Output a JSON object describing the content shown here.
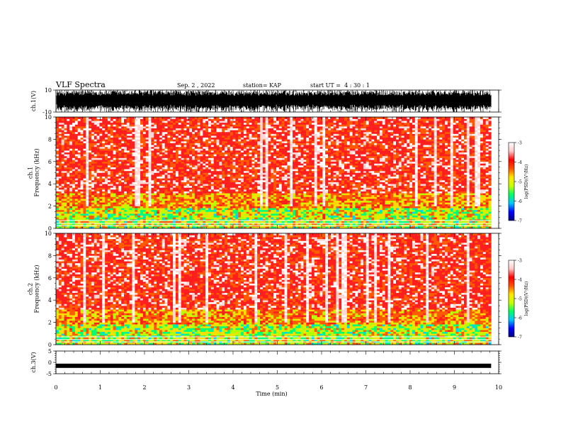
{
  "header": {
    "title": "VLF Spectra",
    "date": "Sep. 2 , 2022",
    "station": "station= KAP",
    "start_ut": "start UT =  4 : 30 : 1"
  },
  "chart_data": [
    {
      "type": "line",
      "name": "ch1-waveform",
      "ylabel": "ch.1(V)",
      "yticks": [
        "10",
        "-10"
      ],
      "ylim": [
        -10,
        10
      ],
      "xlim": [
        0,
        10
      ],
      "data_extent_min": 9.83,
      "description_style": "dense black oscillation near full scale"
    },
    {
      "type": "heatmap",
      "name": "ch1-spectrogram",
      "ylabel": "ch.1\nFrequency (kHz)",
      "ylabel_lines": [
        "ch.1",
        "Frequency (kHz)"
      ],
      "yticks": [
        "0",
        "2",
        "4",
        "6",
        "8",
        "10"
      ],
      "ytick_values": [
        0,
        2,
        4,
        6,
        8,
        10
      ],
      "ylim": [
        0,
        10
      ],
      "xlim": [
        0,
        10
      ],
      "data_extent_min": 9.83,
      "colorbar": {
        "label": "log(PSD)(V²/Hz)",
        "ticks": [
          "-3",
          "-4",
          "-5",
          "-6",
          "-7"
        ],
        "tick_values": [
          -3,
          -4,
          -5,
          -6,
          -7
        ],
        "range": [
          -7,
          -3
        ],
        "colors": [
          "#000080",
          "#0000ff",
          "#00c8ff",
          "#00ff64",
          "#c8ff00",
          "#ffe600",
          "#ff5000",
          "#ff0000",
          "#ffc8c8",
          "#ffffff"
        ]
      }
    },
    {
      "type": "heatmap",
      "name": "ch2-spectrogram",
      "ylabel": "ch.2\nFrequency (kHz)",
      "ylabel_lines": [
        "ch.2",
        "Frequency (kHz)"
      ],
      "yticks": [
        "0",
        "2",
        "4",
        "6",
        "8",
        "10"
      ],
      "ytick_values": [
        0,
        2,
        4,
        6,
        8,
        10
      ],
      "ylim": [
        0,
        10
      ],
      "xlim": [
        0,
        10
      ],
      "data_extent_min": 9.83,
      "colorbar": {
        "label": "log(PSD)(V²/Hz)",
        "ticks": [
          "-3",
          "-4",
          "-5",
          "-6",
          "-7"
        ],
        "tick_values": [
          -3,
          -4,
          -5,
          -6,
          -7
        ],
        "range": [
          -7,
          -3
        ]
      }
    },
    {
      "type": "line",
      "name": "ch3-waveform",
      "ylabel": "ch.3(V)",
      "yticks": [
        "5",
        "0",
        "-5"
      ],
      "ytick_values": [
        5,
        0,
        -5
      ],
      "ylim": [
        -5,
        5
      ],
      "xlim": [
        0,
        10
      ],
      "data_extent_min": 9.83,
      "level_value": -1.5
    }
  ],
  "xaxis": {
    "label": "Time (min)",
    "ticks": [
      "0",
      "1",
      "2",
      "3",
      "4",
      "5",
      "6",
      "7",
      "8",
      "9",
      "10"
    ],
    "tick_values": [
      0,
      1,
      2,
      3,
      4,
      5,
      6,
      7,
      8,
      9,
      10
    ],
    "range": [
      0,
      10
    ]
  }
}
